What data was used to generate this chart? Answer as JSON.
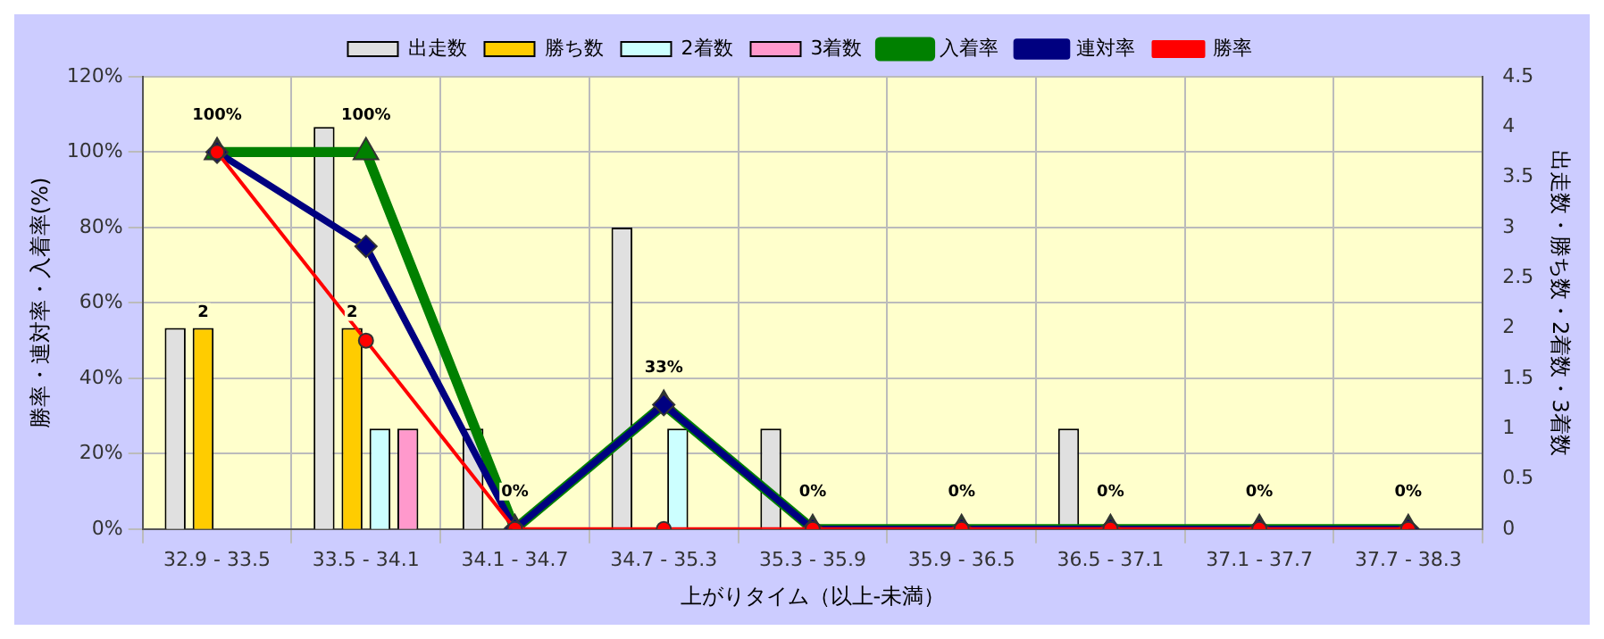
{
  "chart_data": {
    "type": "bar",
    "xlabel": "上がりタイム（以上-未満）",
    "ylabel": "勝率・連対率・入着率(%)",
    "y2label": "出走数・勝ち数・2着数・3着数",
    "categories": [
      "32.9 - 33.5",
      "33.5 - 34.1",
      "34.1 - 34.7",
      "34.7 - 35.3",
      "35.3 - 35.9",
      "35.9 - 36.5",
      "36.5 - 37.1",
      "37.1 - 37.7",
      "37.7 - 38.3"
    ],
    "series": [
      {
        "name": "出走数",
        "axis": "y2",
        "color": "#e0e0e0",
        "values": [
          2,
          4,
          1,
          3,
          1,
          0,
          1,
          0,
          0
        ]
      },
      {
        "name": "勝ち数",
        "axis": "y2",
        "color": "#ffcc00",
        "values": [
          2,
          2,
          0,
          0,
          0,
          0,
          0,
          0,
          0
        ],
        "value_labels": [
          "2",
          "2",
          null,
          null,
          null,
          null,
          null,
          null,
          null
        ]
      },
      {
        "name": "2着数",
        "axis": "y2",
        "color": "#ccffff",
        "values": [
          0,
          1,
          0,
          1,
          0,
          0,
          0,
          0,
          0
        ]
      },
      {
        "name": "3着数",
        "axis": "y2",
        "color": "#ff99cc",
        "values": [
          0,
          1,
          0,
          0,
          0,
          0,
          0,
          0,
          0
        ]
      },
      {
        "name": "入着率",
        "type": "line",
        "marker": "triangle",
        "color": "#008000",
        "values": [
          100,
          100,
          0,
          33,
          0,
          0,
          0,
          0,
          0
        ],
        "value_labels": [
          "100%",
          "100%",
          "0%",
          "33%",
          "0%",
          "0%",
          "0%",
          "0%",
          "0%"
        ]
      },
      {
        "name": "連対率",
        "type": "line",
        "marker": "diamond",
        "color": "#000080",
        "values": [
          100,
          75,
          0,
          33,
          0,
          0,
          0,
          0,
          0
        ]
      },
      {
        "name": "勝率",
        "type": "line",
        "marker": "circle",
        "color": "#ff0000",
        "values": [
          100,
          50,
          0,
          0,
          0,
          0,
          0,
          0,
          0
        ]
      }
    ],
    "ylim": [
      0,
      120
    ],
    "yticks": [
      {
        "value": 0,
        "label": "0%"
      },
      {
        "value": 20,
        "label": "20%"
      },
      {
        "value": 40,
        "label": "40%"
      },
      {
        "value": 60,
        "label": "60%"
      },
      {
        "value": 80,
        "label": "80%"
      },
      {
        "value": 100,
        "label": "100%"
      },
      {
        "value": 120,
        "label": "120%"
      }
    ],
    "y2lim": [
      0,
      4.5
    ],
    "y2ticks": [
      0,
      0.5,
      1,
      1.5,
      2,
      2.5,
      3,
      3.5,
      4,
      4.5
    ],
    "grid": true,
    "legend": "top"
  }
}
